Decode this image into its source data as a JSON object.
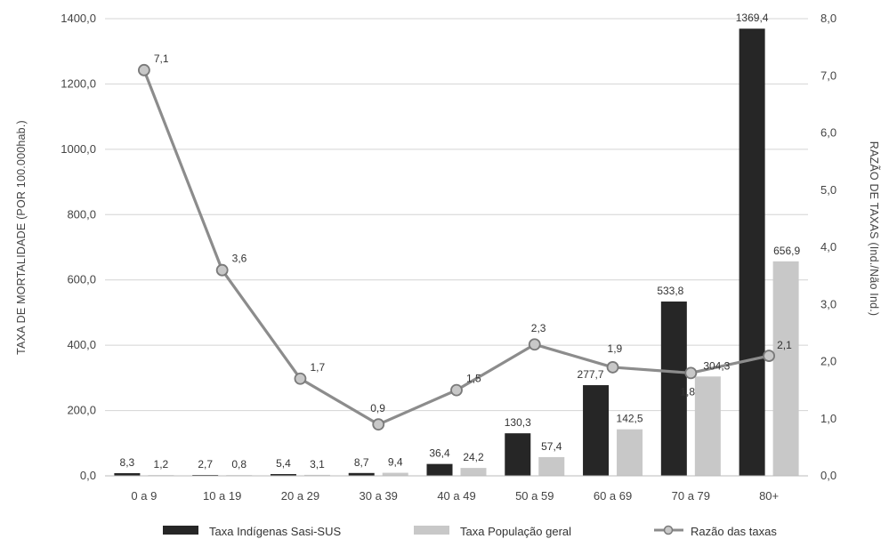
{
  "chart_data": {
    "type": "bar",
    "categories": [
      "0 a 9",
      "10 a 19",
      "20 a 29",
      "30 a 39",
      "40 a 49",
      "50 a 59",
      "60 a 69",
      "70 a 79",
      "80+"
    ],
    "series": [
      {
        "name": "Taxa Indígenas Sasi-SUS",
        "type": "bar",
        "axis": "left",
        "color": "#262626",
        "values": [
          8.3,
          2.7,
          5.4,
          8.7,
          36.4,
          130.3,
          277.7,
          533.8,
          1369.4
        ],
        "labels": [
          "8,3",
          "2,7",
          "5,4",
          "8,7",
          "36,4",
          "130,3",
          "277,7",
          "533,8",
          "1369,4"
        ]
      },
      {
        "name": "Taxa População geral",
        "type": "bar",
        "axis": "left",
        "color": "#c8c8c8",
        "values": [
          1.2,
          0.8,
          3.1,
          9.4,
          24.2,
          57.4,
          142.5,
          304.3,
          656.9
        ],
        "labels": [
          "1,2",
          "0,8",
          "3,1",
          "9,4",
          "24,2",
          "57,4",
          "142,5",
          "304,3",
          "656,9"
        ]
      },
      {
        "name": "Razão das taxas",
        "type": "line",
        "axis": "right",
        "color": "#8c8c8c",
        "values": [
          7.1,
          3.6,
          1.7,
          0.9,
          1.5,
          2.3,
          1.9,
          1.8,
          2.1
        ],
        "labels": [
          "7,1",
          "3,6",
          "1,7",
          "0,9",
          "1,5",
          "2,3",
          "1,9",
          "1,8",
          "2,1"
        ]
      }
    ],
    "ylabel": "TAXA DE MORTALIDADE (POR 100.000hab.)",
    "y2label": "RAZÃO DE TAXAS (Ind./Não Ind.)",
    "ylim": [
      0,
      1400
    ],
    "y2lim": [
      0,
      8
    ],
    "yticks": [
      "0,0",
      "200,0",
      "400,0",
      "600,0",
      "800,0",
      "1000,0",
      "1200,0",
      "1400,0"
    ],
    "y2ticks": [
      "0,0",
      "1,0",
      "2,0",
      "3,0",
      "4,0",
      "5,0",
      "6,0",
      "7,0",
      "8,0"
    ],
    "grid": true,
    "legend_position": "bottom"
  }
}
